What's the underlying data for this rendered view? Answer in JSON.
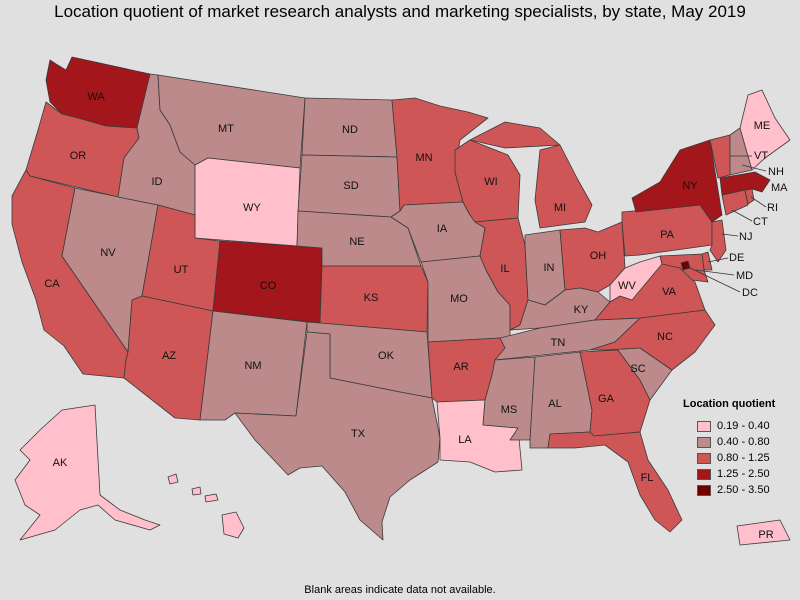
{
  "title": "Location quotient of market research analysts and marketing specialists, by state, May 2019",
  "footnote": "Blank areas indicate data not available.",
  "legend": {
    "title": "Location quotient",
    "items": [
      {
        "label": "0.19 - 0.40",
        "color": "#ffc0cb"
      },
      {
        "label": "0.40 - 0.80",
        "color": "#bc8a8a"
      },
      {
        "label": "0.80 - 1.25",
        "color": "#cf5656"
      },
      {
        "label": "1.25 - 2.50",
        "color": "#a3161b"
      },
      {
        "label": "2.50 - 3.50",
        "color": "#700000"
      }
    ]
  },
  "states": {
    "WA": {
      "label": "WA",
      "class": 3
    },
    "OR": {
      "label": "OR",
      "class": 2
    },
    "CA": {
      "label": "CA",
      "class": 2
    },
    "NV": {
      "label": "NV",
      "class": 1
    },
    "ID": {
      "label": "ID",
      "class": 1
    },
    "MT": {
      "label": "MT",
      "class": 1
    },
    "WY": {
      "label": "WY",
      "class": 0
    },
    "UT": {
      "label": "UT",
      "class": 2
    },
    "AZ": {
      "label": "AZ",
      "class": 2
    },
    "CO": {
      "label": "CO",
      "class": 3
    },
    "NM": {
      "label": "NM",
      "class": 1
    },
    "ND": {
      "label": "ND",
      "class": 1
    },
    "SD": {
      "label": "SD",
      "class": 1
    },
    "NE": {
      "label": "NE",
      "class": 1
    },
    "KS": {
      "label": "KS",
      "class": 2
    },
    "OK": {
      "label": "OK",
      "class": 1
    },
    "TX": {
      "label": "TX",
      "class": 1
    },
    "MN": {
      "label": "MN",
      "class": 2
    },
    "IA": {
      "label": "IA",
      "class": 1
    },
    "MO": {
      "label": "MO",
      "class": 1
    },
    "AR": {
      "label": "AR",
      "class": 2
    },
    "LA": {
      "label": "LA",
      "class": 0
    },
    "WI": {
      "label": "WI",
      "class": 2
    },
    "IL": {
      "label": "IL",
      "class": 2
    },
    "MI": {
      "label": "MI",
      "class": 2
    },
    "IN": {
      "label": "IN",
      "class": 1
    },
    "OH": {
      "label": "OH",
      "class": 2
    },
    "KY": {
      "label": "KY",
      "class": 1
    },
    "TN": {
      "label": "TN",
      "class": 1
    },
    "MS": {
      "label": "MS",
      "class": 1
    },
    "AL": {
      "label": "AL",
      "class": 1
    },
    "GA": {
      "label": "GA",
      "class": 2
    },
    "FL": {
      "label": "FL",
      "class": 2
    },
    "SC": {
      "label": "SC",
      "class": 1
    },
    "NC": {
      "label": "NC",
      "class": 2
    },
    "VA": {
      "label": "VA",
      "class": 2
    },
    "WV": {
      "label": "WV",
      "class": 0
    },
    "PA": {
      "label": "PA",
      "class": 2
    },
    "NY": {
      "label": "NY",
      "class": 3
    },
    "VT": {
      "label": "VT",
      "class": 2
    },
    "NH": {
      "label": "NH",
      "class": 1
    },
    "ME": {
      "label": "ME",
      "class": 0
    },
    "MA": {
      "label": "MA",
      "class": 3
    },
    "RI": {
      "label": "RI",
      "class": 2
    },
    "CT": {
      "label": "CT",
      "class": 2
    },
    "NJ": {
      "label": "NJ",
      "class": 2
    },
    "DE": {
      "label": "DE",
      "class": 2
    },
    "MD": {
      "label": "MD",
      "class": 2
    },
    "DC": {
      "label": "DC",
      "class": 4
    },
    "AK": {
      "label": "AK",
      "class": 0
    },
    "HI": {
      "label": "HI",
      "class": 0
    },
    "PR": {
      "label": "PR",
      "class": 0
    }
  }
}
